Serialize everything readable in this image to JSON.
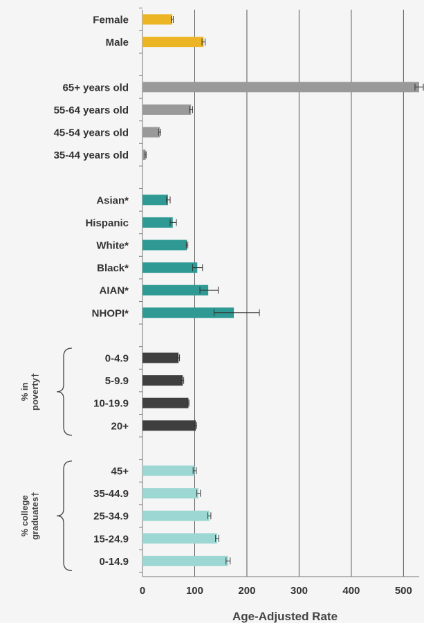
{
  "chart_data": {
    "type": "bar",
    "orientation": "horizontal",
    "xlabel": "Age-Adjusted Rate",
    "xlim": [
      0,
      530
    ],
    "xticks": [
      0,
      100,
      200,
      300,
      400,
      500
    ],
    "grid": true,
    "groups": [
      {
        "label": "",
        "color": "#EBB526",
        "bars": [
          {
            "category": "Female",
            "value": 57,
            "error_low": 55,
            "error_high": 59
          },
          {
            "category": "Male",
            "value": 117,
            "error_low": 114,
            "error_high": 120
          }
        ]
      },
      {
        "label": "",
        "color": "#999999",
        "bars": [
          {
            "category": "65+ years old",
            "value": 530,
            "error_low": 522,
            "error_high": 538
          },
          {
            "category": "55-64 years old",
            "value": 93,
            "error_low": 90,
            "error_high": 96
          },
          {
            "category": "45-54 years old",
            "value": 33,
            "error_low": 31,
            "error_high": 35
          },
          {
            "category": "35-44 years old",
            "value": 6,
            "error_low": 5,
            "error_high": 7
          }
        ]
      },
      {
        "label": "",
        "color": "#2E9A93",
        "bars": [
          {
            "category": "Asian*",
            "value": 49,
            "error_low": 46,
            "error_high": 53
          },
          {
            "category": "Hispanic",
            "value": 58,
            "error_low": 53,
            "error_high": 65
          },
          {
            "category": "White*",
            "value": 85,
            "error_low": 84,
            "error_high": 87
          },
          {
            "category": "Black*",
            "value": 105,
            "error_low": 96,
            "error_high": 115
          },
          {
            "category": "AIAN*",
            "value": 126,
            "error_low": 110,
            "error_high": 145
          },
          {
            "category": "NHOPI*",
            "value": 175,
            "error_low": 137,
            "error_high": 224
          }
        ]
      },
      {
        "label": "% in poverty†",
        "color": "#3F3F3F",
        "bars": [
          {
            "category": "0-4.9",
            "value": 69,
            "error_low": 67,
            "error_high": 71
          },
          {
            "category": "5-9.9",
            "value": 77,
            "error_low": 75,
            "error_high": 79
          },
          {
            "category": "10-19.9",
            "value": 88,
            "error_low": 86,
            "error_high": 89
          },
          {
            "category": "20+",
            "value": 102,
            "error_low": 100,
            "error_high": 104
          }
        ]
      },
      {
        "label": "% college graduates†",
        "color": "#9DD7D3",
        "bars": [
          {
            "category": "45+",
            "value": 100,
            "error_low": 97,
            "error_high": 103
          },
          {
            "category": "35-44.9",
            "value": 107,
            "error_low": 104,
            "error_high": 111
          },
          {
            "category": "25-34.9",
            "value": 128,
            "error_low": 125,
            "error_high": 131
          },
          {
            "category": "15-24.9",
            "value": 143,
            "error_low": 140,
            "error_high": 146
          },
          {
            "category": "0-14.9",
            "value": 164,
            "error_low": 160,
            "error_high": 168
          }
        ]
      }
    ]
  }
}
